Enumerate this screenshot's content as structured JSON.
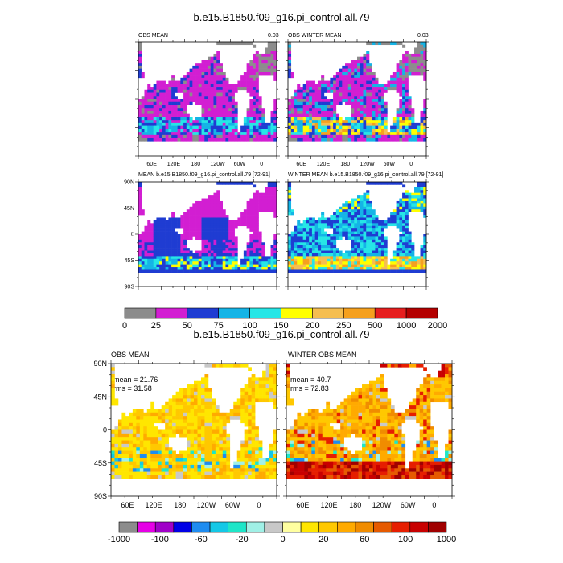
{
  "figure": {
    "top_title": "b.e15.B1850.f09_g16.pi_control.all.79",
    "bottom_title": "b.e15.B1850.f09_g16.pi_control.all.79"
  },
  "panels": {
    "p1": {
      "title": "OBS MEAN",
      "right": "0.03"
    },
    "p2": {
      "title": "OBS WINTER MEAN",
      "right": "0.03"
    },
    "p3": {
      "title": "MEAN b.e15.B1850.f09_g16.pi_control.all.79 [72-91]"
    },
    "p4": {
      "title": "WINTER MEAN b.e15.B1850.f09_g16.pi_control.all.79 [72-91]"
    },
    "p5": {
      "title": "OBS MEAN",
      "mean": "mean = 21.76",
      "rms": "rms = 31.58"
    },
    "p6": {
      "title": "WINTER OBS MEAN",
      "mean": "mean = 40.7",
      "rms": "rms = 72.83"
    }
  },
  "axes": {
    "lon_ticks": [
      "60E",
      "120E",
      "180",
      "120W",
      "60W",
      "0"
    ],
    "lat_ticks": [
      "90N",
      "45N",
      "0",
      "45S",
      "90S"
    ]
  },
  "colorbar_top": {
    "colors": [
      "#8c8c8c",
      "#d21ed2",
      "#1f3cd2",
      "#14b4e6",
      "#26e6e6",
      "#ffff00",
      "#f5be50",
      "#f5a01e",
      "#e61e1e",
      "#b40000"
    ],
    "labels": [
      "0",
      "25",
      "50",
      "75",
      "100",
      "150",
      "200",
      "250",
      "500",
      "1000",
      "2000"
    ]
  },
  "colorbar_bottom": {
    "colors": [
      "#8c8c8c",
      "#e600e6",
      "#a000c8",
      "#0000e6",
      "#1e8cf0",
      "#14c8e6",
      "#1ee6c8",
      "#a0f0e6",
      "#c8c8c8",
      "#ffffa0",
      "#ffe600",
      "#ffc800",
      "#ffaa00",
      "#f08c00",
      "#e65a00",
      "#e61e00",
      "#c80000",
      "#a00000"
    ],
    "labels": [
      "-1000",
      "-100",
      "-60",
      "-20",
      "0",
      "20",
      "60",
      "100",
      "1000"
    ]
  },
  "chart_data": [
    {
      "type": "heatmap",
      "title": "OBS MEAN",
      "xlabel": "",
      "ylabel": "",
      "x_ticks": [
        "60E",
        "120E",
        "180",
        "120W",
        "60W",
        "0"
      ],
      "value_levels": [
        0,
        25,
        50,
        75,
        100,
        150,
        200,
        250,
        500,
        1000,
        2000
      ]
    },
    {
      "type": "heatmap",
      "title": "OBS WINTER MEAN",
      "x_ticks": [
        "60E",
        "120E",
        "180",
        "120W",
        "60W",
        "0"
      ],
      "value_levels": [
        0,
        25,
        50,
        75,
        100,
        150,
        200,
        250,
        500,
        1000,
        2000
      ]
    },
    {
      "type": "heatmap",
      "title": "MEAN b.e15.B1850.f09_g16.pi_control.all.79 [72-91]",
      "y_ticks": [
        "90N",
        "45N",
        "0",
        "45S",
        "90S"
      ],
      "value_levels": [
        0,
        25,
        50,
        75,
        100,
        150,
        200,
        250,
        500,
        1000,
        2000
      ]
    },
    {
      "type": "heatmap",
      "title": "WINTER MEAN b.e15.B1850.f09_g16.pi_control.all.79 [72-91]",
      "value_levels": [
        0,
        25,
        50,
        75,
        100,
        150,
        200,
        250,
        500,
        1000,
        2000
      ]
    },
    {
      "type": "heatmap",
      "title": "OBS MEAN",
      "annotations": [
        "mean = 21.76",
        "rms = 31.58"
      ],
      "value_levels": [
        -1000,
        -100,
        -60,
        -20,
        0,
        20,
        60,
        100,
        1000
      ]
    },
    {
      "type": "heatmap",
      "title": "WINTER OBS MEAN",
      "annotations": [
        "mean = 40.7",
        "rms = 72.83"
      ],
      "value_levels": [
        -1000,
        -100,
        -60,
        -20,
        0,
        20,
        60,
        100,
        1000
      ]
    }
  ]
}
